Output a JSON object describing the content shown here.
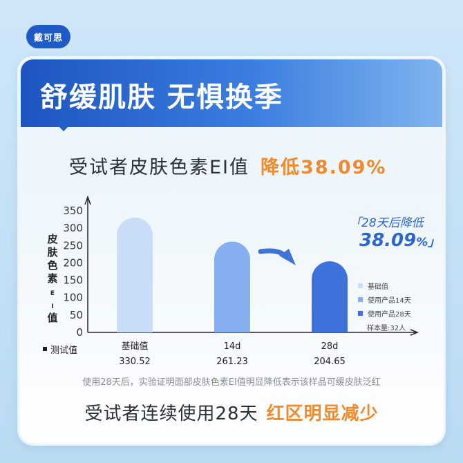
{
  "brand": {
    "logo_text": "戴可思"
  },
  "header": {
    "headline": "舒缓肌肤  无惧换季"
  },
  "subtitle": {
    "text": "受试者皮肤色素EI值",
    "highlight": "降低38.09%"
  },
  "callout": {
    "line1": "「28天后降低",
    "value": "38.09",
    "suffix": "%」",
    "color": "#2d66d3"
  },
  "legend": {
    "items": [
      {
        "label": "基础值",
        "color": "#c9dcf8"
      },
      {
        "label": "使用产品14天",
        "color": "#86aff2"
      },
      {
        "label": "使用产品28天",
        "color": "#3d72db"
      }
    ],
    "note": "样本量:32人"
  },
  "table": {
    "row_label": "测试值"
  },
  "footnote": "使用28天后，实验证明面部皮肤色素EI值明显降低表示该样品可缓皮肤泛红",
  "conclusion": {
    "text": "受试者连续使用28天",
    "highlight": "红区明显减少"
  },
  "colors": {
    "accent_orange": "#f08a2e",
    "banner_blue": "#1d55c0"
  },
  "chart_data": {
    "type": "bar",
    "ylabel": "皮肤色素EI值",
    "categories": [
      "基础值",
      "14d",
      "28d"
    ],
    "values": [
      330.52,
      261.23,
      204.65
    ],
    "value_labels": [
      "330.52",
      "261.23",
      "204.65"
    ],
    "colors": [
      "#c9dcf8",
      "#86aff2",
      "#3d72db"
    ],
    "yticks": [
      0,
      50,
      100,
      150,
      200,
      250,
      300,
      350
    ],
    "ylim": [
      0,
      350
    ],
    "grid": false,
    "legend_position": "right"
  }
}
